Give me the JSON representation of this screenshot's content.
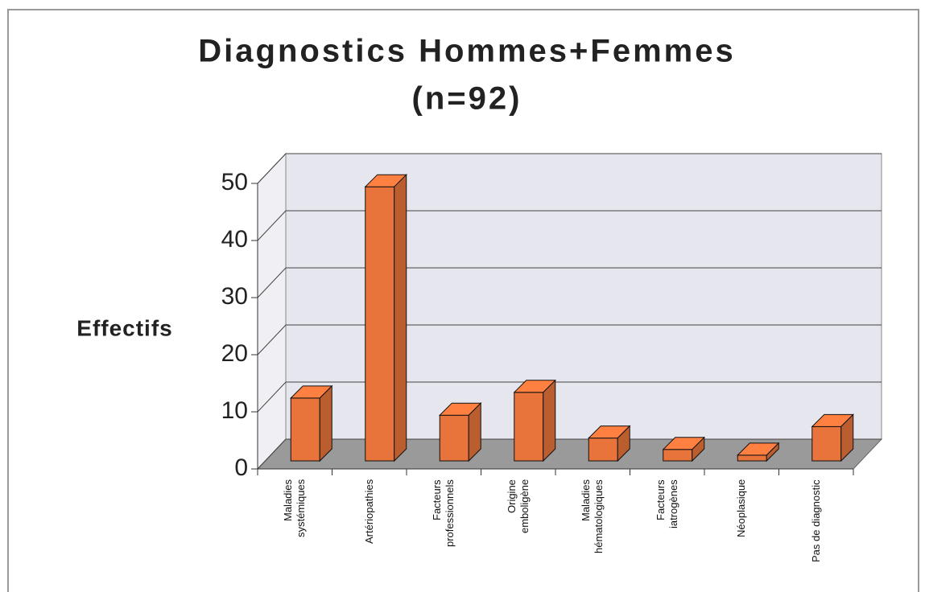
{
  "chart_data": {
    "type": "bar3d",
    "title": "Diagnostics Hommes+Femmes",
    "subtitle": "(n=92)",
    "y_label": "Effectifs",
    "categories": [
      "Maladies systémiques",
      "Artériopathies",
      "Facteurs professionnels",
      "Origine emboligène",
      "Maladies hématologiques",
      "Facteurs iatrogènes",
      "Néoplasique",
      "Pas de diagnostic"
    ],
    "values": [
      11,
      48,
      8,
      12,
      4,
      2,
      1,
      6
    ],
    "color": "#e8743b",
    "ylim": [
      0,
      50
    ],
    "yticks": [
      0,
      10,
      20,
      30,
      40,
      50
    ],
    "grid": true
  }
}
